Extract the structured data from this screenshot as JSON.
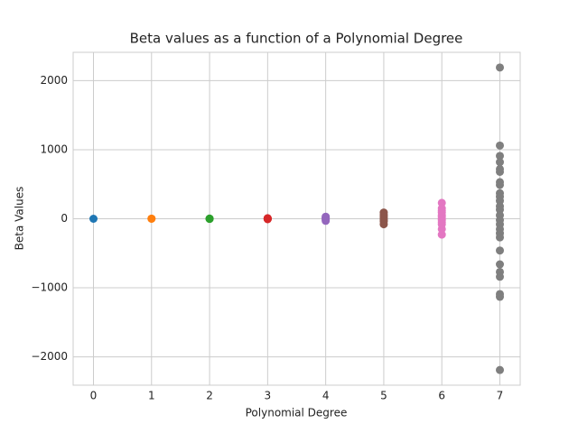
{
  "chart_data": {
    "type": "scatter",
    "title": "Beta values as a function of a Polynomial Degree",
    "x_label": "Polynomial Degree",
    "y_label": "Beta Values",
    "xlim": [
      -0.35,
      7.35
    ],
    "ylim": [
      -2410,
      2410
    ],
    "xticks": [
      0,
      1,
      2,
      3,
      4,
      5,
      6,
      7
    ],
    "yticks": [
      {
        "value": -2000,
        "label": "−2000"
      },
      {
        "value": -1000,
        "label": "−1000"
      },
      0,
      1000,
      2000
    ],
    "grid": true,
    "series": [
      {
        "color": "#1f77b4",
        "x": [
          0
        ],
        "values": [
          0
        ]
      },
      {
        "color": "#ff7f0e",
        "x": [
          1,
          1
        ],
        "values": [
          0,
          2
        ]
      },
      {
        "color": "#2ca02c",
        "x": [
          2,
          2,
          2
        ],
        "values": [
          0,
          3,
          -2
        ]
      },
      {
        "color": "#d62728",
        "x": [
          3,
          3,
          3,
          3,
          3
        ],
        "values": [
          5,
          -3,
          0,
          -6,
          8
        ]
      },
      {
        "color": "#9467bd",
        "x": [
          4,
          4,
          4,
          4,
          4,
          4
        ],
        "values": [
          30,
          -30,
          10,
          -15,
          0,
          20
        ]
      },
      {
        "color": "#8c564b",
        "x": [
          5,
          5,
          5,
          5,
          5,
          5,
          5
        ],
        "values": [
          90,
          -80,
          40,
          -40,
          10,
          -20,
          60
        ]
      },
      {
        "color": "#e377c2",
        "x": [
          6,
          6,
          6,
          6,
          6,
          6,
          6,
          6,
          6,
          6,
          6,
          6
        ],
        "values": [
          230,
          -230,
          150,
          -150,
          90,
          -80,
          30,
          -20,
          50,
          0,
          -50,
          120
        ]
      },
      {
        "color": "#7f7f7f",
        "x": [
          7,
          7,
          7,
          7,
          7,
          7,
          7,
          7,
          7,
          7,
          7,
          7,
          7,
          7,
          7,
          7,
          7,
          7,
          7,
          7,
          7,
          7,
          7,
          7,
          7,
          7
        ],
        "values": [
          2190,
          1060,
          910,
          820,
          720,
          680,
          530,
          490,
          370,
          320,
          260,
          180,
          130,
          50,
          -20,
          -80,
          -150,
          -210,
          -270,
          -460,
          -660,
          -770,
          -840,
          -1090,
          -1130,
          -2190
        ]
      }
    ]
  }
}
